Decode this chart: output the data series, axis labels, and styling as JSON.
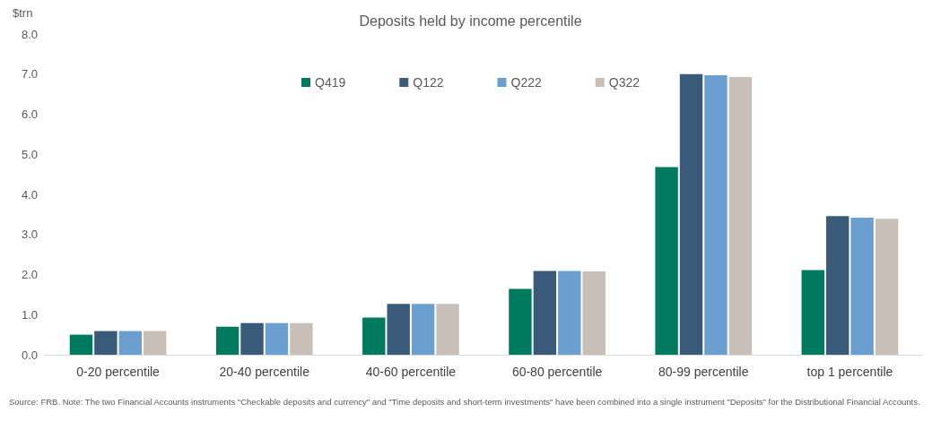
{
  "chart_data": {
    "type": "bar",
    "title": "Deposits held by income percentile",
    "ylabel": "$trn",
    "categories": [
      "0-20 percentile",
      "20-40 percentile",
      "40-60 percentile",
      "60-80 percentile",
      "80-99 percentile",
      "top 1 percentile"
    ],
    "series": [
      {
        "name": "Q419",
        "color": "#007a5e",
        "values": [
          0.5,
          0.7,
          0.93,
          1.64,
          4.68,
          2.11
        ]
      },
      {
        "name": "Q122",
        "color": "#3a5a7a",
        "values": [
          0.59,
          0.79,
          1.27,
          2.09,
          7.0,
          3.46
        ]
      },
      {
        "name": "Q222",
        "color": "#6a9fd0",
        "values": [
          0.59,
          0.79,
          1.27,
          2.09,
          6.97,
          3.42
        ]
      },
      {
        "name": "Q322",
        "color": "#c8bfb8",
        "values": [
          0.59,
          0.79,
          1.27,
          2.08,
          6.93,
          3.39
        ]
      }
    ],
    "ylim": [
      0,
      8
    ],
    "yticks": [
      {
        "value": 0,
        "label": "0.0"
      },
      {
        "value": 1,
        "label": "1.0"
      },
      {
        "value": 2,
        "label": "2.0"
      },
      {
        "value": 3,
        "label": "3.0"
      },
      {
        "value": 4,
        "label": "4.0"
      },
      {
        "value": 5,
        "label": "5.0"
      },
      {
        "value": 6,
        "label": "6.0"
      },
      {
        "value": 7,
        "label": "7.0"
      },
      {
        "value": 8,
        "label": "8.0"
      }
    ],
    "grid": false,
    "legend": "top",
    "annotations": [
      "Source: FRB. Note: The two Financial Accounts instruments \"Checkable deposits and currency\" and \"Time deposits and short-term investments\" have been combined into a single instrument \"Deposits\" for the Distributional Financial Accounts."
    ]
  }
}
